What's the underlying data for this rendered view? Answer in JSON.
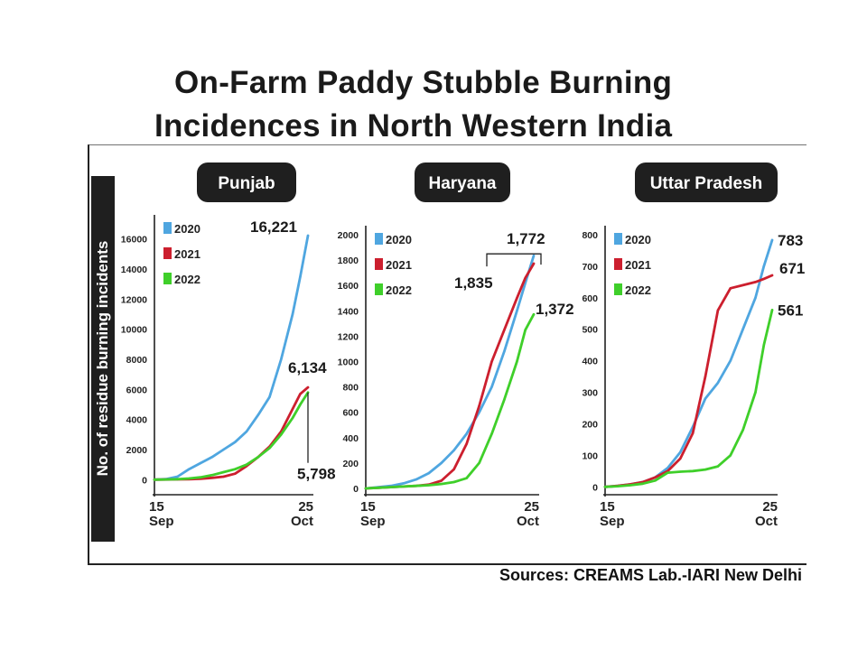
{
  "title_line1": "On-Farm Paddy Stubble Burning",
  "title_line2": "Incidences in North Western India",
  "y_axis_label": "No. of residue burning incidents",
  "source": "Sources: CREAMS Lab.-IARI New Delhi",
  "colors": {
    "2020": "#4fa6e0",
    "2021": "#cc1f2e",
    "2022": "#3fcf2a",
    "badge": "#1f1f1f"
  },
  "chart_data": [
    {
      "type": "line",
      "panel": "Punjab",
      "x_tick_labels": [
        [
          "15",
          "Sep"
        ],
        [
          "25",
          "Oct"
        ]
      ],
      "xlim": [
        0,
        40
      ],
      "ylim": [
        -1000,
        17000
      ],
      "yticks": [
        0,
        2000,
        4000,
        6000,
        8000,
        10000,
        12000,
        14000,
        16000
      ],
      "series": [
        {
          "name": "2020",
          "x": [
            0,
            3,
            6,
            9,
            12,
            15,
            18,
            21,
            24,
            27,
            30,
            33,
            36,
            38,
            40
          ],
          "y": [
            0,
            40,
            200,
            700,
            1100,
            1500,
            2000,
            2500,
            3200,
            4300,
            5500,
            8000,
            11000,
            13500,
            16221
          ]
        },
        {
          "name": "2021",
          "x": [
            0,
            3,
            6,
            9,
            12,
            15,
            18,
            21,
            24,
            27,
            30,
            33,
            36,
            38,
            40
          ],
          "y": [
            0,
            10,
            20,
            30,
            60,
            120,
            200,
            400,
            900,
            1500,
            2200,
            3200,
            4700,
            5700,
            6134
          ]
        },
        {
          "name": "2022",
          "x": [
            0,
            3,
            6,
            9,
            12,
            15,
            18,
            21,
            24,
            27,
            30,
            33,
            36,
            38,
            40
          ],
          "y": [
            0,
            15,
            30,
            80,
            160,
            300,
            500,
            700,
            1000,
            1500,
            2100,
            3000,
            4100,
            5000,
            5798
          ]
        }
      ],
      "annotations": [
        {
          "text": "16,221",
          "series": "2020"
        },
        {
          "text": "6,134",
          "series": "2021"
        },
        {
          "text": "5,798",
          "series": "2022"
        }
      ]
    },
    {
      "type": "line",
      "panel": "Haryana",
      "x_tick_labels": [
        [
          "15",
          "Sep"
        ],
        [
          "25",
          "Oct"
        ]
      ],
      "xlim": [
        0,
        40
      ],
      "ylim": [
        -50,
        2000
      ],
      "yticks": [
        0,
        200,
        400,
        600,
        800,
        1000,
        1200,
        1400,
        1600,
        1800,
        2000
      ],
      "series": [
        {
          "name": "2020",
          "x": [
            0,
            3,
            6,
            9,
            12,
            15,
            18,
            21,
            24,
            27,
            30,
            33,
            36,
            38,
            40
          ],
          "y": [
            0,
            10,
            20,
            40,
            70,
            120,
            200,
            300,
            430,
            600,
            800,
            1080,
            1400,
            1620,
            1835
          ]
        },
        {
          "name": "2021",
          "x": [
            0,
            3,
            6,
            9,
            12,
            15,
            18,
            21,
            24,
            27,
            30,
            33,
            36,
            38,
            40
          ],
          "y": [
            0,
            5,
            10,
            15,
            20,
            30,
            60,
            150,
            350,
            650,
            1000,
            1250,
            1500,
            1660,
            1772
          ]
        },
        {
          "name": "2022",
          "x": [
            0,
            3,
            6,
            9,
            12,
            15,
            18,
            21,
            24,
            27,
            30,
            33,
            36,
            38,
            40
          ],
          "y": [
            0,
            5,
            10,
            15,
            20,
            25,
            35,
            50,
            80,
            200,
            430,
            700,
            1000,
            1250,
            1372
          ]
        }
      ],
      "annotations": [
        {
          "text": "1,835",
          "series": "2020"
        },
        {
          "text": "1,772",
          "series": "2021"
        },
        {
          "text": "1,372",
          "series": "2022"
        }
      ]
    },
    {
      "type": "line",
      "panel": "Uttar Pradesh",
      "x_tick_labels": [
        [
          "15",
          "Sep"
        ],
        [
          "25",
          "Oct"
        ]
      ],
      "xlim": [
        0,
        40
      ],
      "ylim": [
        -25,
        800
      ],
      "yticks": [
        0,
        100,
        200,
        300,
        400,
        500,
        600,
        700,
        800
      ],
      "series": [
        {
          "name": "2020",
          "x": [
            0,
            3,
            6,
            9,
            12,
            15,
            18,
            21,
            24,
            27,
            30,
            33,
            36,
            38,
            40
          ],
          "y": [
            0,
            3,
            8,
            15,
            30,
            60,
            110,
            190,
            280,
            330,
            400,
            500,
            600,
            700,
            783
          ]
        },
        {
          "name": "2021",
          "x": [
            0,
            3,
            6,
            9,
            12,
            15,
            18,
            21,
            24,
            27,
            30,
            33,
            36,
            38,
            40
          ],
          "y": [
            0,
            3,
            8,
            15,
            30,
            50,
            90,
            170,
            350,
            560,
            630,
            640,
            650,
            660,
            671
          ]
        },
        {
          "name": "2022",
          "x": [
            0,
            3,
            6,
            9,
            12,
            15,
            18,
            21,
            24,
            27,
            30,
            33,
            36,
            38,
            40
          ],
          "y": [
            0,
            2,
            5,
            10,
            20,
            45,
            48,
            50,
            55,
            65,
            100,
            180,
            300,
            450,
            561
          ]
        }
      ],
      "annotations": [
        {
          "text": "783",
          "series": "2020"
        },
        {
          "text": "671",
          "series": "2021"
        },
        {
          "text": "561",
          "series": "2022"
        }
      ]
    }
  ]
}
